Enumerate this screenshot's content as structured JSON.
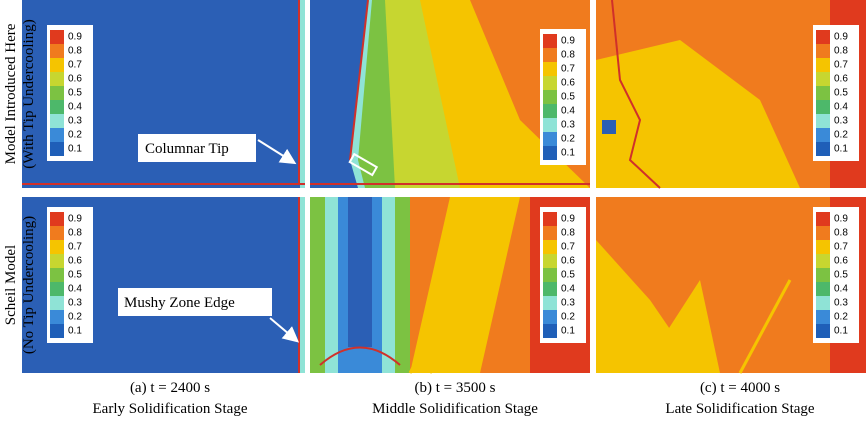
{
  "row_labels": [
    {
      "line1": "Model Introduced Here",
      "line2": "(With Tip Undercooling)"
    },
    {
      "line1": "Scheil Model",
      "line2": "(No Tip Undercooling)"
    }
  ],
  "annotations": [
    "Columnar Tip",
    "Mushy Zone Edge"
  ],
  "colorbar_labels": [
    "0.9",
    "0.8",
    "0.7",
    "0.6",
    "0.5",
    "0.4",
    "0.3",
    "0.2",
    "0.1"
  ],
  "captions": [
    {
      "time": "(a) t = 2400 s",
      "stage": "Early Solidification Stage"
    },
    {
      "time": "(b) t = 3500 s",
      "stage": "Middle Solidification Stage"
    },
    {
      "time": "(c) t = 4000 s",
      "stage": "Late Solidification Stage"
    }
  ]
}
